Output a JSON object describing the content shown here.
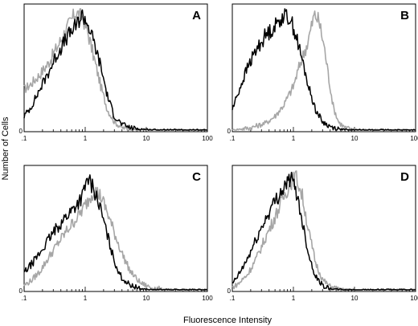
{
  "figure": {
    "xlabel": "Fluorescence Intensity",
    "ylabel": "Number of Cells"
  },
  "colors": {
    "black_series": "#000000",
    "gray_series": "#a6a6a6"
  },
  "chart_data": [
    {
      "type": "line",
      "panel": "A",
      "x_scale": "log",
      "xlim": [
        0.1,
        100
      ],
      "x_tick_labels": [
        ".1",
        "1",
        "10",
        "100"
      ],
      "y_tick_labels": [
        "0"
      ],
      "grid": false,
      "series": [
        {
          "color": "black",
          "x": [
            0.1,
            0.13,
            0.18,
            0.25,
            0.35,
            0.5,
            0.7,
            0.9,
            1.1,
            1.4,
            1.8,
            2.3,
            3,
            4,
            5.5,
            8,
            12,
            20
          ],
          "y": [
            12,
            20,
            35,
            50,
            66,
            80,
            90,
            100,
            92,
            75,
            55,
            30,
            12,
            5,
            2,
            1,
            0.3,
            0
          ]
        },
        {
          "color": "gray",
          "x": [
            0.1,
            0.13,
            0.18,
            0.25,
            0.35,
            0.5,
            0.7,
            0.9,
            1.1,
            1.4,
            1.8,
            2.3,
            3,
            4,
            6,
            10,
            20
          ],
          "y": [
            35,
            40,
            48,
            58,
            72,
            88,
            102,
            98,
            85,
            62,
            38,
            18,
            7,
            2,
            0.5,
            0,
            0
          ]
        }
      ]
    },
    {
      "type": "line",
      "panel": "B",
      "x_scale": "log",
      "xlim": [
        0.1,
        100
      ],
      "x_tick_labels": [
        ".1",
        "1",
        "10",
        "100"
      ],
      "y_tick_labels": [
        "0"
      ],
      "grid": false,
      "series": [
        {
          "color": "black",
          "x": [
            0.1,
            0.13,
            0.18,
            0.25,
            0.35,
            0.5,
            0.7,
            0.9,
            1.1,
            1.4,
            1.8,
            2.3,
            3,
            4,
            5.5,
            8
          ],
          "y": [
            18,
            35,
            55,
            70,
            82,
            90,
            100,
            96,
            82,
            60,
            36,
            18,
            7,
            3,
            1,
            0
          ]
        },
        {
          "color": "gray",
          "x": [
            0.1,
            0.2,
            0.35,
            0.5,
            0.7,
            1.0,
            1.3,
            1.7,
            2.2,
            2.6,
            3.2,
            3.8,
            4.5,
            5.5,
            7,
            10,
            20
          ],
          "y": [
            0,
            2,
            6,
            12,
            22,
            38,
            58,
            75,
            100,
            95,
            72,
            45,
            20,
            7,
            2,
            0.5,
            0
          ]
        }
      ]
    },
    {
      "type": "line",
      "panel": "C",
      "x_scale": "log",
      "xlim": [
        0.1,
        100
      ],
      "x_tick_labels": [
        ".1",
        "1",
        "10",
        "100"
      ],
      "y_tick_labels": [
        "0"
      ],
      "grid": false,
      "series": [
        {
          "color": "black",
          "x": [
            0.1,
            0.13,
            0.18,
            0.25,
            0.35,
            0.5,
            0.7,
            0.9,
            1.1,
            1.4,
            1.8,
            2.3,
            3,
            4,
            5.5,
            8,
            12
          ],
          "y": [
            15,
            22,
            32,
            44,
            55,
            65,
            74,
            82,
            98,
            88,
            70,
            48,
            25,
            10,
            4,
            1,
            0
          ]
        },
        {
          "color": "gray",
          "x": [
            0.1,
            0.13,
            0.18,
            0.25,
            0.35,
            0.5,
            0.7,
            0.9,
            1.1,
            1.4,
            1.8,
            2.3,
            3,
            4,
            5.5,
            8,
            12,
            20,
            30
          ],
          "y": [
            4,
            8,
            16,
            28,
            40,
            52,
            62,
            70,
            78,
            88,
            82,
            68,
            50,
            32,
            16,
            6,
            2,
            0.5,
            0
          ]
        }
      ]
    },
    {
      "type": "line",
      "panel": "D",
      "x_scale": "log",
      "xlim": [
        0.1,
        100
      ],
      "x_tick_labels": [
        ".1",
        "1",
        "10",
        "100"
      ],
      "y_tick_labels": [
        "0"
      ],
      "grid": false,
      "series": [
        {
          "color": "black",
          "x": [
            0.1,
            0.13,
            0.18,
            0.25,
            0.35,
            0.5,
            0.7,
            0.9,
            1.1,
            1.4,
            1.8,
            2.3,
            3,
            4,
            5.5,
            8
          ],
          "y": [
            5,
            14,
            28,
            45,
            62,
            78,
            90,
            98,
            88,
            60,
            30,
            12,
            4,
            1,
            0.3,
            0
          ]
        },
        {
          "color": "gray",
          "x": [
            0.1,
            0.13,
            0.18,
            0.25,
            0.35,
            0.5,
            0.7,
            0.9,
            1.1,
            1.4,
            1.8,
            2.3,
            3,
            4,
            5.5,
            8,
            12
          ],
          "y": [
            2,
            6,
            14,
            28,
            46,
            64,
            82,
            94,
            100,
            82,
            50,
            24,
            9,
            3,
            1,
            0.3,
            0
          ]
        }
      ]
    }
  ]
}
